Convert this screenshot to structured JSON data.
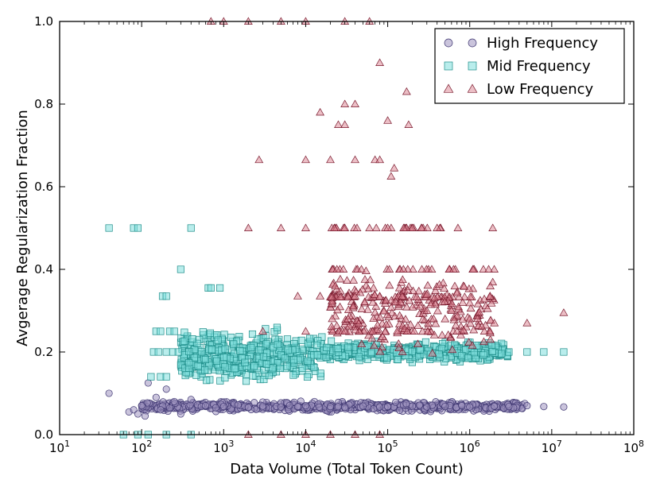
{
  "chart_data": {
    "type": "scatter",
    "title": "",
    "xlabel": "Data Volume (Total Token Count)",
    "ylabel": "Avgerage Regularization Fraction",
    "xscale": "log",
    "xlim": [
      10,
      100000000
    ],
    "ylim": [
      0.0,
      1.0
    ],
    "grid": false,
    "legend_position": "top-right",
    "x_ticks": [
      {
        "value": 10,
        "base": "10",
        "exp": "1"
      },
      {
        "value": 100,
        "base": "10",
        "exp": "2"
      },
      {
        "value": 1000,
        "base": "10",
        "exp": "3"
      },
      {
        "value": 10000,
        "base": "10",
        "exp": "4"
      },
      {
        "value": 100000,
        "base": "10",
        "exp": "5"
      },
      {
        "value": 1000000,
        "base": "10",
        "exp": "6"
      },
      {
        "value": 10000000,
        "base": "10",
        "exp": "7"
      },
      {
        "value": 100000000,
        "base": "10",
        "exp": "8"
      }
    ],
    "y_ticks": [
      {
        "value": 0.0,
        "label": "0.0"
      },
      {
        "value": 0.2,
        "label": "0.2"
      },
      {
        "value": 0.4,
        "label": "0.4"
      },
      {
        "value": 0.6,
        "label": "0.6"
      },
      {
        "value": 0.8,
        "label": "0.8"
      },
      {
        "value": 1.0,
        "label": "1.0"
      }
    ],
    "series": [
      {
        "name": "High Frequency",
        "marker": "circle",
        "fill": "#9f94c0",
        "edge": "#3d3570",
        "points": [
          [
            40,
            0.1
          ],
          [
            70,
            0.055
          ],
          [
            80,
            0.06
          ],
          [
            90,
            0.05
          ],
          [
            100,
            0.07
          ],
          [
            110,
            0.045
          ],
          [
            120,
            0.125
          ],
          [
            150,
            0.09
          ],
          [
            170,
            0.06
          ],
          [
            200,
            0.11
          ],
          [
            250,
            0.08
          ],
          [
            300,
            0.05
          ],
          [
            400,
            0.085
          ],
          [
            600,
            0.07
          ],
          [
            800,
            0.065
          ],
          [
            1000,
            0.068
          ],
          [
            1500,
            0.072
          ],
          [
            2000,
            0.066
          ],
          [
            3000,
            0.069
          ],
          [
            5000,
            0.067
          ],
          [
            8000,
            0.068
          ],
          [
            10000,
            0.07
          ],
          [
            20000,
            0.068
          ],
          [
            30000,
            0.066
          ],
          [
            50000,
            0.069
          ],
          [
            80000,
            0.067
          ],
          [
            100000,
            0.068
          ],
          [
            200000,
            0.069
          ],
          [
            300000,
            0.067
          ],
          [
            500000,
            0.068
          ],
          [
            800000,
            0.07
          ],
          [
            1000000,
            0.067
          ],
          [
            2000000,
            0.069
          ],
          [
            3000000,
            0.068
          ],
          [
            5000000,
            0.07
          ],
          [
            8000000,
            0.068
          ],
          [
            14000000,
            0.067
          ]
        ],
        "cloud": {
          "x_from": 100,
          "x_to": 5000000,
          "y_center": 0.068,
          "y_spread": 0.015,
          "count": 700
        }
      },
      {
        "name": "Mid Frequency",
        "marker": "square",
        "fill": "#7fdedc",
        "edge": "#1d8d89",
        "points": [
          [
            40,
            0.5
          ],
          [
            80,
            0.5
          ],
          [
            90,
            0.5
          ],
          [
            400,
            0.5
          ],
          [
            300,
            0.4
          ],
          [
            180,
            0.335
          ],
          [
            200,
            0.335
          ],
          [
            650,
            0.355
          ],
          [
            700,
            0.355
          ],
          [
            900,
            0.355
          ],
          [
            150,
            0.25
          ],
          [
            170,
            0.25
          ],
          [
            220,
            0.25
          ],
          [
            250,
            0.25
          ],
          [
            140,
            0.2
          ],
          [
            160,
            0.2
          ],
          [
            200,
            0.2
          ],
          [
            240,
            0.2
          ],
          [
            280,
            0.2
          ],
          [
            130,
            0.14
          ],
          [
            170,
            0.14
          ],
          [
            200,
            0.14
          ],
          [
            3000000,
            0.2
          ],
          [
            5000000,
            0.2
          ],
          [
            8000000,
            0.2
          ],
          [
            14000000,
            0.2
          ],
          [
            60,
            0.0
          ],
          [
            90,
            0.0
          ],
          [
            120,
            0.0
          ],
          [
            200,
            0.0
          ],
          [
            400,
            0.0
          ]
        ],
        "cloud": {
          "x_from": 300,
          "x_to": 3000000,
          "y_center": 0.19,
          "y_spread": 0.08,
          "count": 900
        }
      },
      {
        "name": "Low Frequency",
        "marker": "triangle",
        "fill": "#d9808e",
        "edge": "#7a1a2e",
        "points": [
          [
            80000,
            0.9
          ],
          [
            170000,
            0.83
          ],
          [
            30000,
            0.8
          ],
          [
            40000,
            0.8
          ],
          [
            15000,
            0.78
          ],
          [
            25000,
            0.75
          ],
          [
            30000,
            0.75
          ],
          [
            100000,
            0.76
          ],
          [
            180000,
            0.75
          ],
          [
            2700,
            0.665
          ],
          [
            10000,
            0.665
          ],
          [
            20000,
            0.665
          ],
          [
            40000,
            0.665
          ],
          [
            70000,
            0.665
          ],
          [
            80000,
            0.665
          ],
          [
            120000,
            0.645
          ],
          [
            110000,
            0.625
          ],
          [
            2000,
            0.5
          ],
          [
            5000,
            0.5
          ],
          [
            10000,
            0.5
          ],
          [
            30000,
            0.5
          ],
          [
            60000,
            0.5
          ],
          [
            100000,
            0.5
          ],
          [
            200000,
            0.5
          ],
          [
            400000,
            0.5
          ],
          [
            8000,
            0.335
          ],
          [
            15000,
            0.335
          ],
          [
            40000,
            0.335
          ],
          [
            80000,
            0.335
          ],
          [
            150000,
            0.335
          ],
          [
            300000,
            0.3
          ],
          [
            600000,
            0.3
          ],
          [
            1000000,
            0.28
          ],
          [
            2000000,
            0.27
          ],
          [
            5000000,
            0.27
          ],
          [
            14000000,
            0.295
          ],
          [
            3000,
            0.25
          ],
          [
            10000,
            0.25
          ],
          [
            30000,
            0.25
          ],
          [
            2000,
            0.0
          ],
          [
            5000,
            0.0
          ],
          [
            10000,
            0.0
          ],
          [
            20000,
            0.0
          ],
          [
            40000,
            0.0
          ],
          [
            80000,
            0.0
          ],
          [
            700,
            1.0
          ],
          [
            1000,
            1.0
          ],
          [
            2000,
            1.0
          ],
          [
            5000,
            1.0
          ],
          [
            10000,
            1.0
          ],
          [
            30000,
            1.0
          ],
          [
            60000,
            1.0
          ]
        ],
        "cloud": {
          "x_from": 20000,
          "x_to": 2000000,
          "y_center": 0.3,
          "y_spread": 0.12,
          "count": 380
        }
      }
    ]
  }
}
